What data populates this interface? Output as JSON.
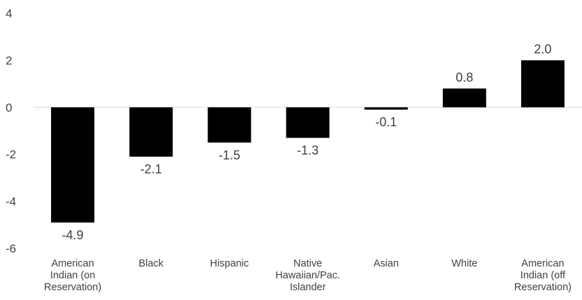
{
  "chart_data": {
    "type": "bar",
    "categories": [
      [
        "American",
        "Indian (on",
        "Reservation)"
      ],
      [
        "Black"
      ],
      [
        "Hispanic"
      ],
      [
        "Native",
        "Hawaiian/Pac.",
        "Islander"
      ],
      [
        "Asian"
      ],
      [
        "White"
      ],
      [
        "American",
        "Indian (off",
        "Reservation)"
      ]
    ],
    "values": [
      -4.9,
      -2.1,
      -1.5,
      -1.3,
      -0.1,
      0.8,
      2.0
    ],
    "data_labels": [
      "-4.9",
      "-2.1",
      "-1.5",
      "-1.3",
      "-0.1",
      "0.8",
      "2.0"
    ],
    "yticks": [
      4,
      2,
      0,
      -2,
      -4,
      -6
    ],
    "ylim": [
      -6,
      4
    ],
    "grid": false,
    "bar_color": "#000000",
    "axis_color": "#d9d9d9",
    "text_color": "#404040"
  }
}
